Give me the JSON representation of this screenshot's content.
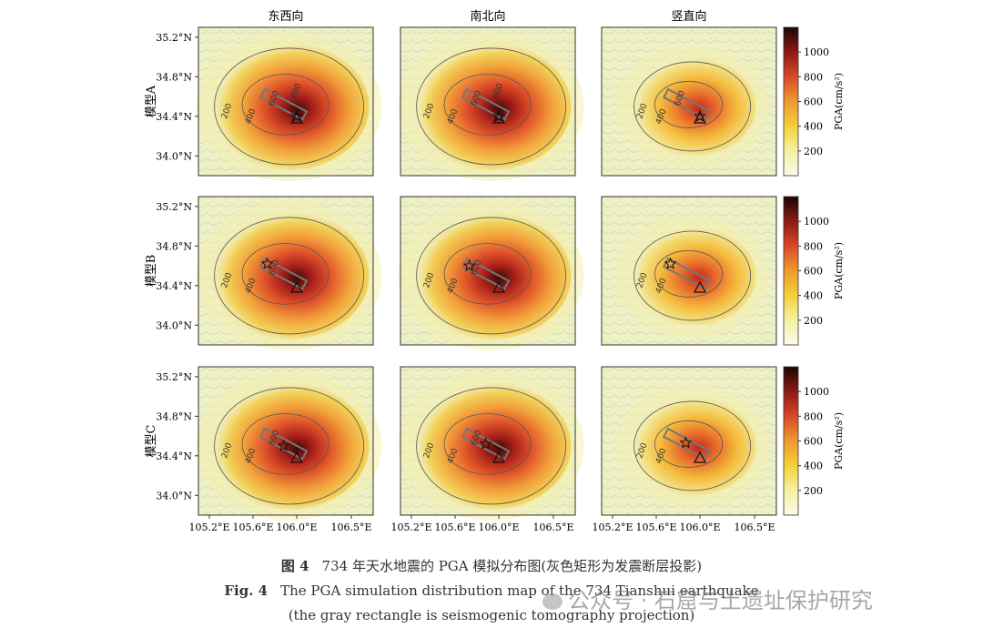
{
  "figure": {
    "columns": [
      "东西向",
      "南北向",
      "竖直向"
    ],
    "rows": [
      "模型A",
      "模型B",
      "模型C"
    ],
    "x_ticks": [
      "105.2°E",
      "105.6°E",
      "106.0°E",
      "106.5°E"
    ],
    "y_ticks": [
      "35.2°N",
      "34.8°N",
      "34.4°N",
      "34.0°N"
    ],
    "colorbar_label": "PGA(cm/s²)",
    "colorbar_ticks": [
      "1000",
      "800",
      "600",
      "400",
      "200"
    ],
    "colors": {
      "low": "#f3f1c8",
      "mid": "#f0c23a",
      "high": "#c2261c",
      "max": "#3a0a05",
      "contour": "#555555",
      "fault": "#777777"
    },
    "caption": {
      "zh_prefix": "图 4",
      "zh_text": "734 年天水地震的 PGA 模拟分布图(灰色矩形为发震断层投影)",
      "en_prefix": "Fig. 4",
      "en_text": "The PGA simulation distribution map of the 734 Tianshui earthquake",
      "en_text2": "(the gray rectangle is seismogenic tomography projection)"
    },
    "watermark": "公众号 · 石窟与土遗址保护研究"
  },
  "chart_data": {
    "type": "heatmap",
    "xlabel": "",
    "ylabel": "",
    "x_ticks": [
      105.2,
      105.6,
      106.0,
      106.5
    ],
    "y_ticks": [
      35.2,
      34.8,
      34.4,
      34.0
    ],
    "colorbar": {
      "label": "PGA(cm/s²)",
      "ticks": [
        200,
        400,
        600,
        800,
        1000
      ],
      "range": [
        0,
        1200
      ]
    },
    "panels": [
      {
        "row": "模型A",
        "column": "东西向",
        "contour_labels": [
          "200",
          "400",
          "600",
          "800"
        ]
      },
      {
        "row": "模型A",
        "column": "南北向",
        "contour_labels": [
          "200",
          "400",
          "600",
          "800"
        ]
      },
      {
        "row": "模型A",
        "column": "竖直向",
        "contour_labels": [
          "200",
          "400",
          "600"
        ]
      },
      {
        "row": "模型B",
        "column": "东西向",
        "contour_labels": [
          "200",
          "400",
          "600"
        ]
      },
      {
        "row": "模型B",
        "column": "南北向",
        "contour_labels": [
          "200",
          "400",
          "600"
        ]
      },
      {
        "row": "模型B",
        "column": "竖直向",
        "contour_labels": [
          "200",
          "400"
        ]
      },
      {
        "row": "模型C",
        "column": "东西向",
        "contour_labels": [
          "200",
          "400",
          "600"
        ]
      },
      {
        "row": "模型C",
        "column": "南北向",
        "contour_labels": [
          "200",
          "400",
          "600"
        ]
      },
      {
        "row": "模型C",
        "column": "竖直向",
        "contour_labels": [
          "200",
          "400"
        ]
      }
    ]
  }
}
